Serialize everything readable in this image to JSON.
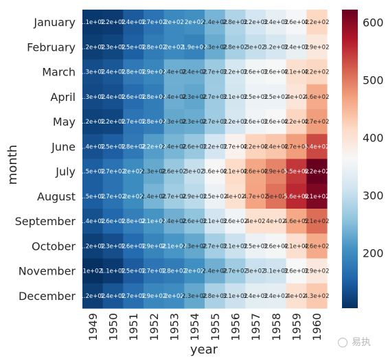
{
  "chart_data": {
    "type": "heatmap",
    "title": "",
    "xlabel": "year",
    "ylabel": "month",
    "x": [
      "1949",
      "1950",
      "1951",
      "1952",
      "1953",
      "1954",
      "1955",
      "1956",
      "1957",
      "1958",
      "1959",
      "1960"
    ],
    "y": [
      "January",
      "February",
      "March",
      "April",
      "May",
      "June",
      "July",
      "August",
      "September",
      "October",
      "November",
      "December"
    ],
    "values": [
      [
        112,
        115,
        145,
        171,
        196,
        204,
        242,
        284,
        315,
        340,
        360,
        417
      ],
      [
        118,
        126,
        150,
        180,
        196,
        188,
        233,
        277,
        301,
        318,
        342,
        391
      ],
      [
        132,
        141,
        178,
        193,
        236,
        235,
        267,
        317,
        356,
        362,
        406,
        419
      ],
      [
        129,
        135,
        163,
        181,
        235,
        227,
        269,
        313,
        348,
        348,
        396,
        461
      ],
      [
        121,
        125,
        172,
        183,
        229,
        234,
        270,
        318,
        355,
        363,
        420,
        472
      ],
      [
        135,
        149,
        178,
        218,
        243,
        264,
        315,
        374,
        422,
        435,
        472,
        535
      ],
      [
        148,
        170,
        199,
        230,
        264,
        302,
        364,
        413,
        465,
        491,
        548,
        622
      ],
      [
        148,
        170,
        199,
        242,
        272,
        293,
        347,
        405,
        467,
        505,
        559,
        606
      ],
      [
        136,
        158,
        184,
        209,
        237,
        259,
        312,
        355,
        404,
        404,
        463,
        508
      ],
      [
        119,
        133,
        162,
        191,
        211,
        229,
        274,
        306,
        347,
        359,
        407,
        461
      ],
      [
        104,
        114,
        146,
        172,
        180,
        203,
        237,
        271,
        305,
        310,
        362,
        390
      ],
      [
        118,
        140,
        166,
        194,
        201,
        229,
        278,
        306,
        336,
        337,
        405,
        432
      ]
    ],
    "annotations": [
      [
        "1.1e+02",
        "1.2e+02",
        "1.4e+02",
        "1.7e+02",
        "2e+02",
        "2e+02",
        "2.4e+02",
        "2.8e+02",
        "3.2e+02",
        "3.4e+02",
        "3.6e+02",
        "4.2e+02"
      ],
      [
        "1.2e+02",
        "1.3e+02",
        "1.5e+02",
        "1.8e+02",
        "2e+02",
        "1.9e+02",
        "2.3e+02",
        "2.8e+02",
        "3e+02",
        "3.2e+02",
        "3.4e+02",
        "3.9e+02"
      ],
      [
        "1.3e+02",
        "1.4e+02",
        "1.8e+02",
        "1.9e+02",
        "2.4e+02",
        "2.4e+02",
        "2.7e+02",
        "3.2e+02",
        "3.6e+02",
        "3.6e+02",
        "4.1e+02",
        "4.2e+02"
      ],
      [
        "1.3e+02",
        "1.4e+02",
        "1.6e+02",
        "1.8e+02",
        "2.4e+02",
        "2.3e+02",
        "2.7e+02",
        "3.1e+02",
        "3.5e+02",
        "3.5e+02",
        "4e+02",
        "4.6e+02"
      ],
      [
        "1.2e+02",
        "1.2e+02",
        "1.7e+02",
        "1.8e+02",
        "2.3e+02",
        "2.3e+02",
        "2.7e+02",
        "3.2e+02",
        "3.6e+02",
        "3.6e+02",
        "4.2e+02",
        "4.7e+02"
      ],
      [
        "1.4e+02",
        "1.5e+02",
        "1.8e+02",
        "2.2e+02",
        "2.4e+02",
        "2.6e+02",
        "3.2e+02",
        "3.7e+02",
        "4.2e+02",
        "4.4e+02",
        "4.7e+02",
        "5.4e+02"
      ],
      [
        "1.5e+02",
        "1.7e+02",
        "2e+02",
        "2.3e+02",
        "2.6e+02",
        "3e+02",
        "3.6e+02",
        "4.1e+02",
        "4.6e+02",
        "4.9e+02",
        "5.5e+02",
        "6.2e+02"
      ],
      [
        "1.5e+02",
        "1.7e+02",
        "2e+02",
        "2.4e+02",
        "2.7e+02",
        "2.9e+02",
        "3.5e+02",
        "4e+02",
        "4.7e+02",
        "5e+02",
        "5.6e+02",
        "6.1e+02"
      ],
      [
        "1.4e+02",
        "1.6e+02",
        "1.8e+02",
        "2.1e+02",
        "2.4e+02",
        "2.6e+02",
        "3.1e+02",
        "3.6e+02",
        "4e+02",
        "4e+02",
        "4.6e+02",
        "5.1e+02"
      ],
      [
        "1.2e+02",
        "1.3e+02",
        "1.6e+02",
        "1.9e+02",
        "2.1e+02",
        "2.3e+02",
        "2.7e+02",
        "3.1e+02",
        "3.5e+02",
        "3.6e+02",
        "4.1e+02",
        "4.6e+02"
      ],
      [
        "1e+02",
        "1.1e+02",
        "1.5e+02",
        "1.7e+02",
        "1.8e+02",
        "2e+02",
        "2.4e+02",
        "2.7e+02",
        "3e+02",
        "3.1e+02",
        "3.6e+02",
        "3.9e+02"
      ],
      [
        "1.2e+02",
        "1.4e+02",
        "1.7e+02",
        "1.9e+02",
        "2e+02",
        "2.3e+02",
        "2.8e+02",
        "3.1e+02",
        "3.4e+02",
        "3.4e+02",
        "4e+02",
        "4.3e+02"
      ]
    ],
    "colorbar": {
      "range": [
        104,
        622
      ],
      "ticks": [
        200,
        300,
        400,
        500,
        600
      ]
    },
    "colormap": "RdBu_r",
    "grid": false,
    "legend": "colorbar right"
  },
  "watermark": {
    "text": "易执"
  }
}
